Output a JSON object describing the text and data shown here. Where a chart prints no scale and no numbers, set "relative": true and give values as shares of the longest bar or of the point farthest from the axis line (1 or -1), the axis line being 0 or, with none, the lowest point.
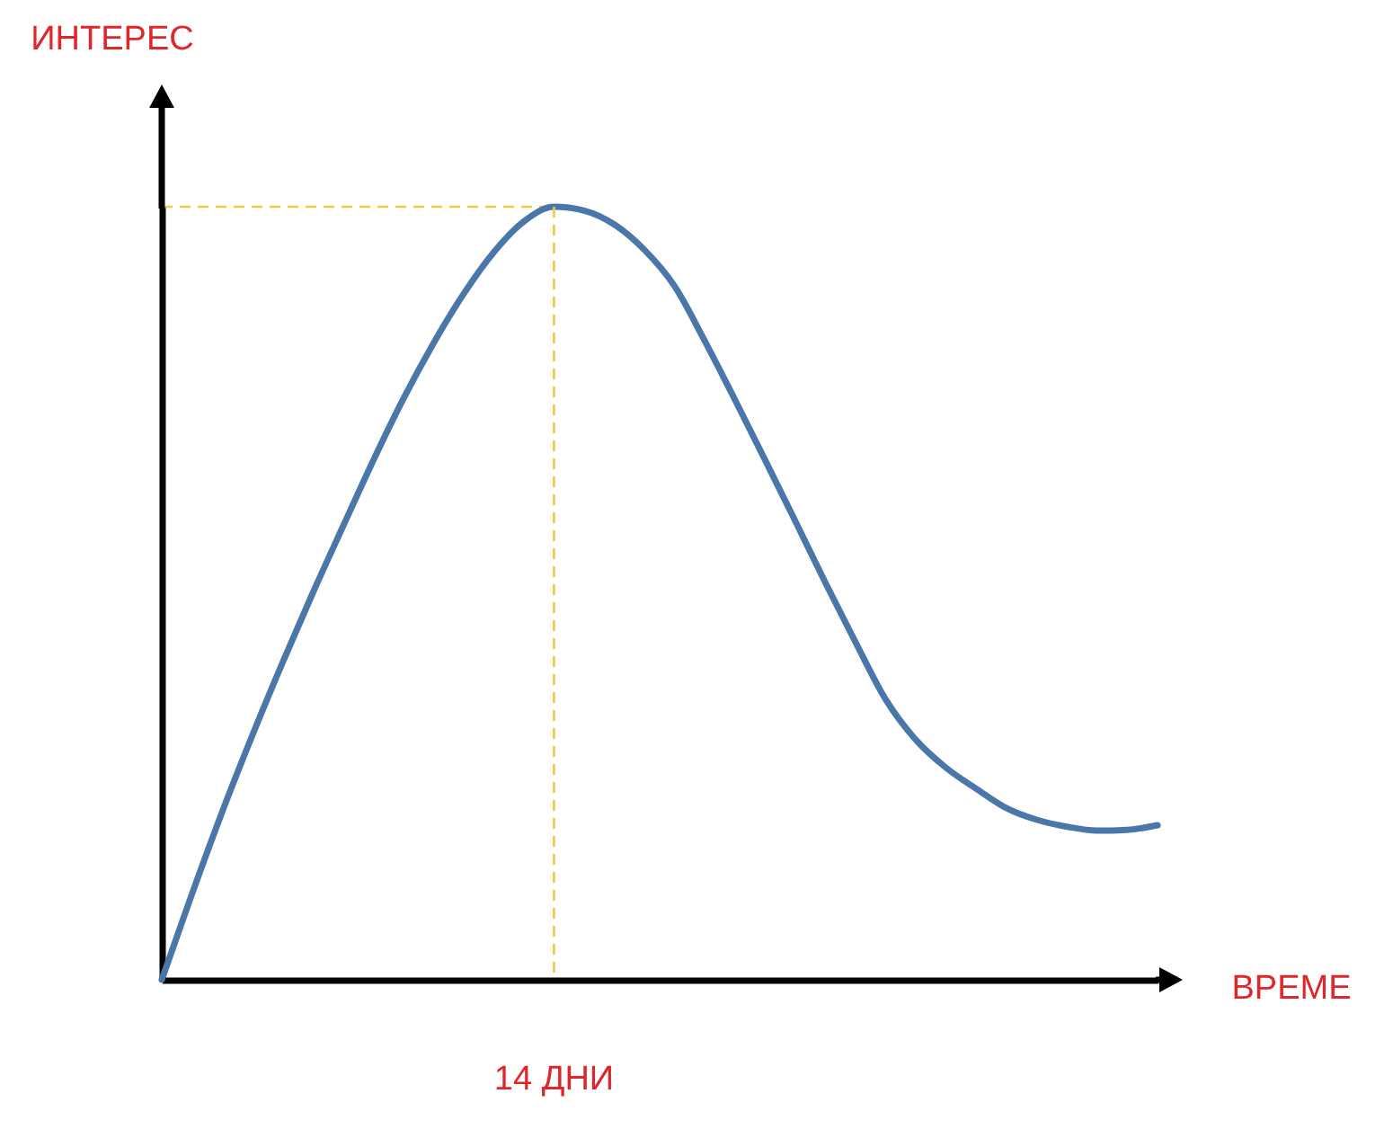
{
  "chart_data": {
    "type": "line",
    "xlabel": "ВРЕМЕ",
    "ylabel": "ИНТЕРЕС",
    "relative": true,
    "color": "#4a77a9",
    "categories": [
      null,
      null,
      null,
      null,
      null,
      null,
      null,
      null,
      null,
      null,
      null,
      null,
      null,
      null,
      null,
      null,
      null,
      null,
      null,
      null,
      null,
      null,
      null,
      null,
      null,
      null,
      null,
      null,
      null,
      null,
      null,
      null,
      null,
      null
    ],
    "values": [
      0,
      0.111,
      0.217,
      0.316,
      0.41,
      0.5,
      0.586,
      0.671,
      0.751,
      0.823,
      0.887,
      0.941,
      0.981,
      1,
      0.995,
      0.977,
      0.944,
      0.897,
      0.826,
      0.75,
      0.672,
      0.593,
      0.513,
      0.436,
      0.362,
      0.31,
      0.274,
      0.247,
      0.222,
      0.207,
      0.198,
      0.193,
      0.194,
      0.2
    ],
    "ref_lines": [
      {
        "axis": "y",
        "value": 1,
        "color": "#f2c744",
        "line_style": "dashed"
      }
    ],
    "annotations": [
      "14 ДНИ"
    ]
  }
}
